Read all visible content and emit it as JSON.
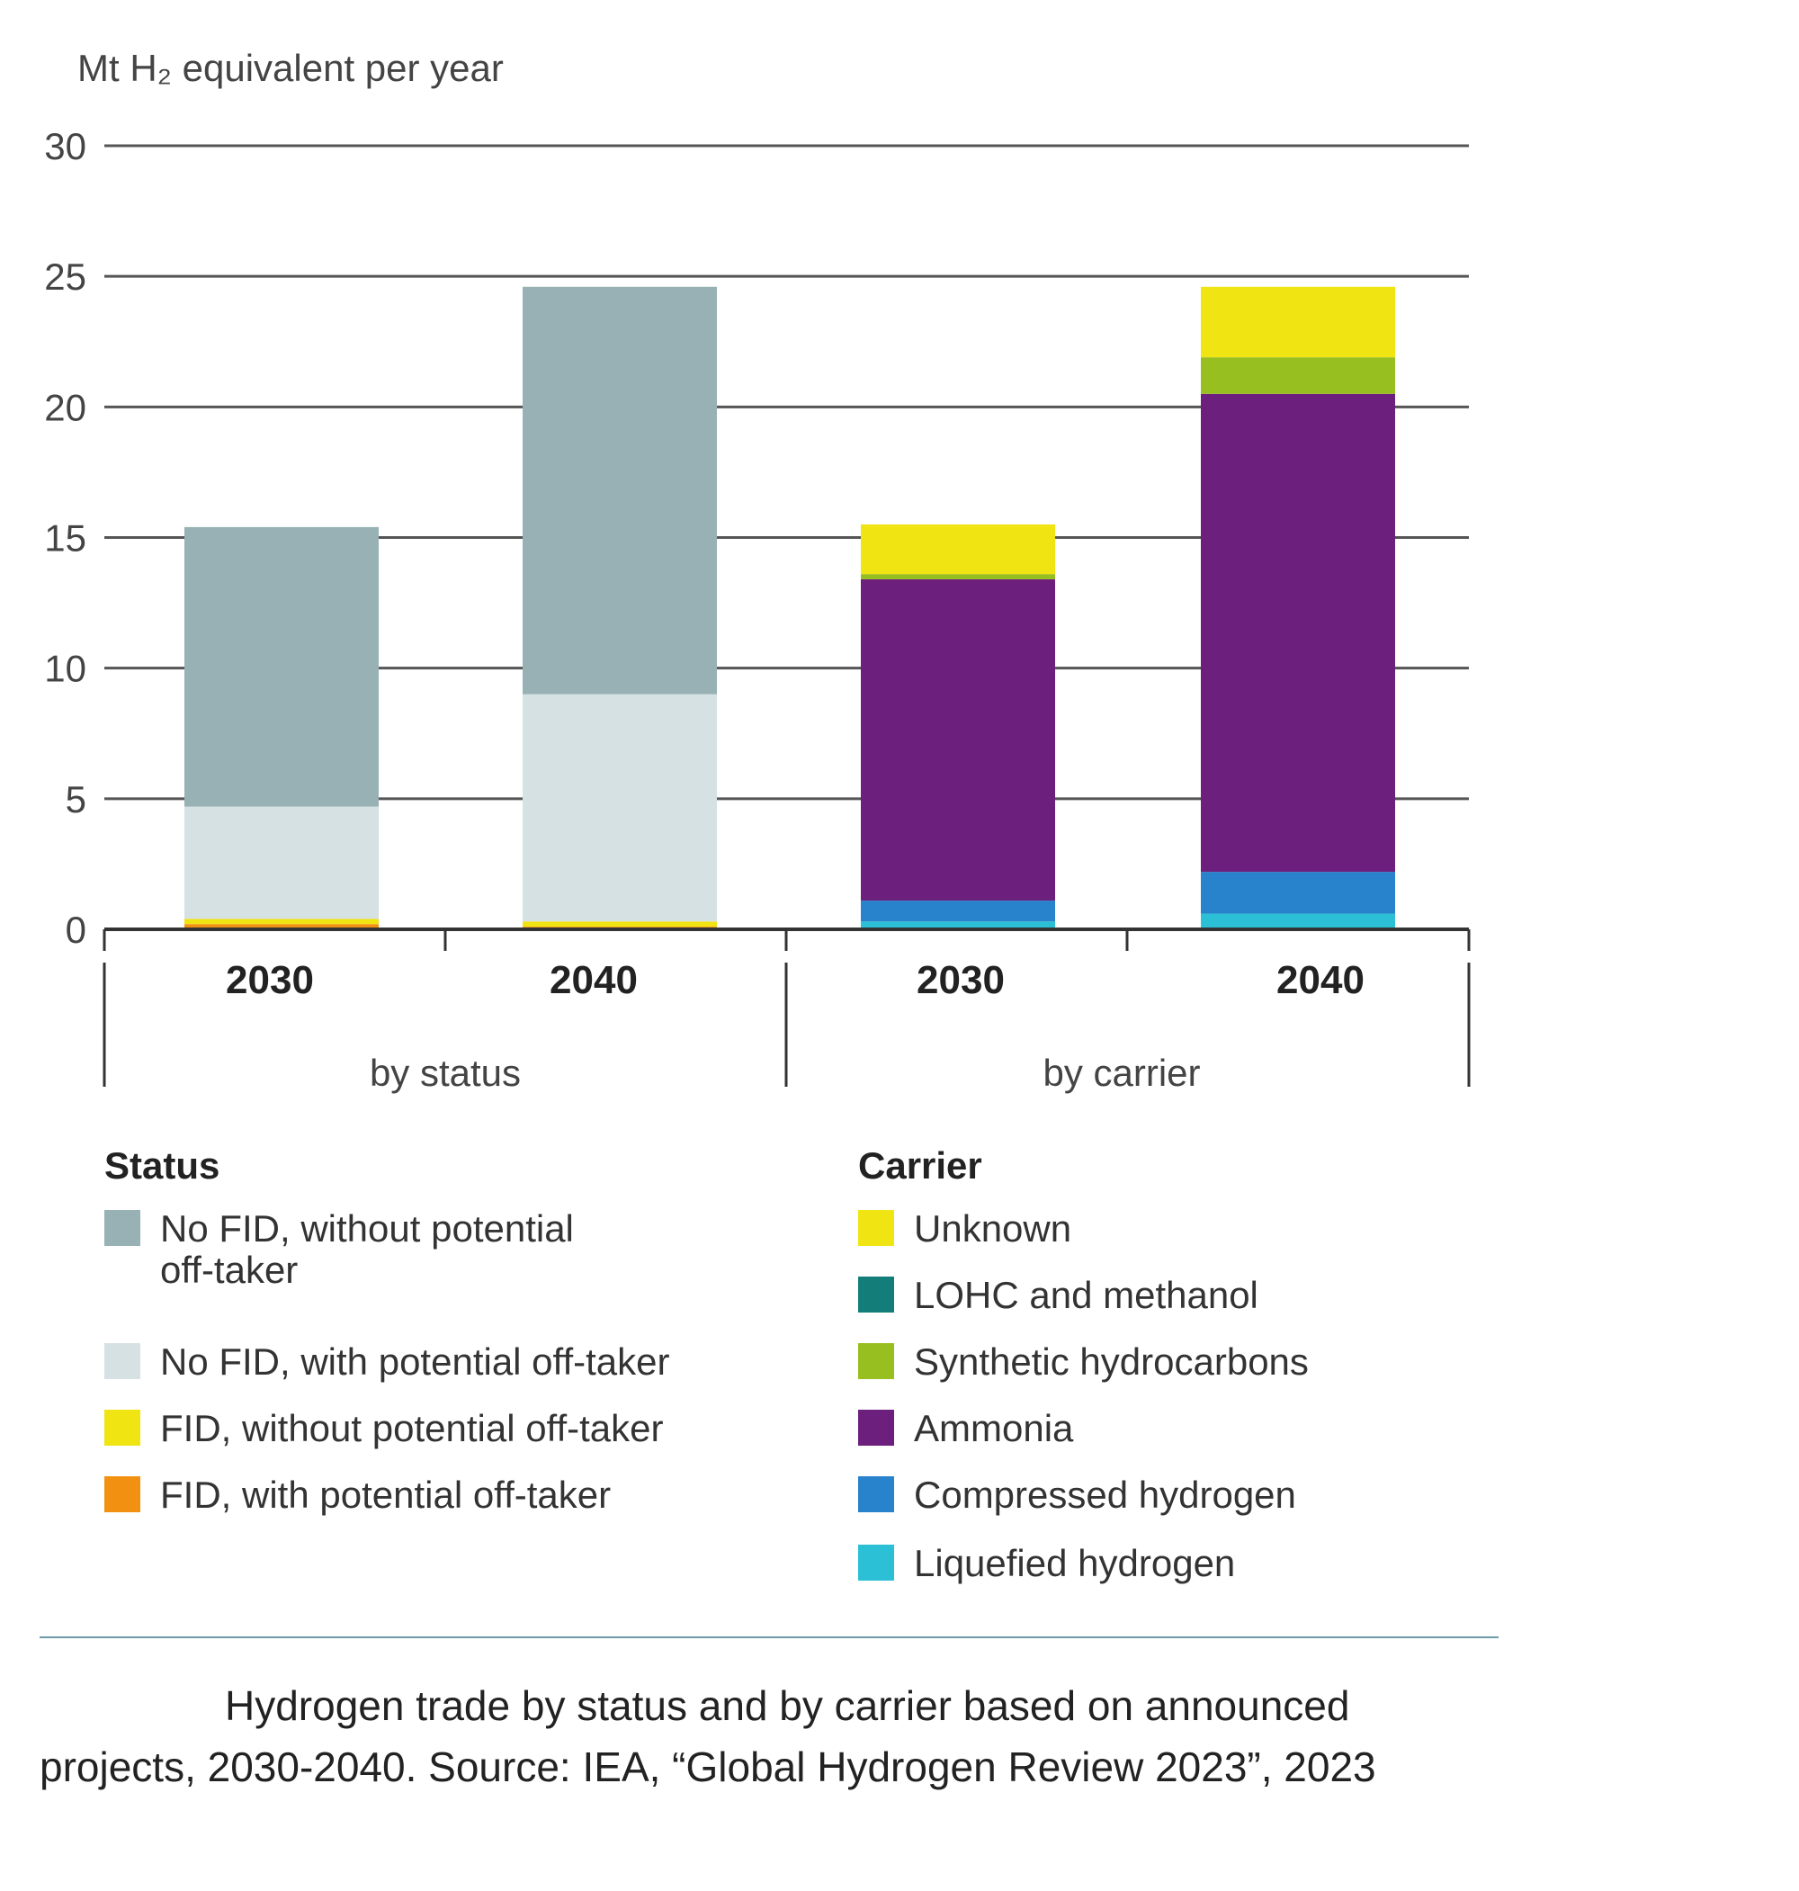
{
  "chart_data": {
    "type": "bar",
    "stacked": true,
    "ylabel": "Mt H₂ equivalent per year",
    "ylim": [
      0,
      30
    ],
    "yticks": [
      0,
      5,
      10,
      15,
      20,
      25,
      30
    ],
    "grid": true,
    "groups": [
      {
        "label": "by status",
        "categories": [
          "2030",
          "2040"
        ],
        "series": [
          {
            "name": "FID, with potential off-taker",
            "color": "#f29111",
            "values": [
              0.2,
              0.1
            ]
          },
          {
            "name": "FID, without potential off-taker",
            "color": "#f0e413",
            "values": [
              0.2,
              0.2
            ]
          },
          {
            "name": "No FID, with potential off-taker",
            "color": "#d5e1e3",
            "values": [
              4.3,
              8.7
            ]
          },
          {
            "name": "No FID, without potential off-taker",
            "color": "#97b1b4",
            "values": [
              10.7,
              15.6
            ]
          }
        ]
      },
      {
        "label": "by carrier",
        "categories": [
          "2030",
          "2040"
        ],
        "series": [
          {
            "name": "Liquefied hydrogen",
            "color": "#2cc0d6",
            "values": [
              0.3,
              0.6
            ]
          },
          {
            "name": "Compressed hydrogen",
            "color": "#2982cc",
            "values": [
              0.8,
              1.6
            ]
          },
          {
            "name": "Ammonia",
            "color": "#6c1f7c",
            "values": [
              12.3,
              18.3
            ]
          },
          {
            "name": "LOHC and methanol",
            "color": "#137e79",
            "values": [
              0,
              0
            ]
          },
          {
            "name": "Synthetic hydrocarbons",
            "color": "#97bf1f",
            "values": [
              0.2,
              1.4
            ]
          },
          {
            "name": "Unknown",
            "color": "#f0e413",
            "values": [
              1.9,
              2.7
            ]
          }
        ]
      }
    ]
  },
  "legend": {
    "status": {
      "title": "Status",
      "items": [
        {
          "lines": [
            "No FID, without potential",
            "off-taker"
          ],
          "color": "#97b1b4"
        },
        {
          "lines": [
            "No FID, with potential off-taker"
          ],
          "color": "#d5e1e3"
        },
        {
          "lines": [
            "FID, without potential off-taker"
          ],
          "color": "#f0e413"
        },
        {
          "lines": [
            "FID, with potential off-taker"
          ],
          "color": "#f29111"
        }
      ]
    },
    "carrier": {
      "title": "Carrier",
      "items": [
        {
          "lines": [
            "Unknown"
          ],
          "color": "#f0e413"
        },
        {
          "lines": [
            "LOHC and methanol"
          ],
          "color": "#137e79"
        },
        {
          "lines": [
            "Synthetic hydrocarbons"
          ],
          "color": "#97bf1f"
        },
        {
          "lines": [
            "Ammonia"
          ],
          "color": "#6c1f7c"
        },
        {
          "lines": [
            "Compressed hydrogen"
          ],
          "color": "#2982cc"
        },
        {
          "lines": [
            "Liquefied hydrogen"
          ],
          "color": "#2cc0d6"
        }
      ]
    }
  },
  "caption": "Hydrogen trade by status and by carrier based on announced projects, 2030-2040. Source: IEA, “Global Hydrogen Review 2023”, 2023"
}
